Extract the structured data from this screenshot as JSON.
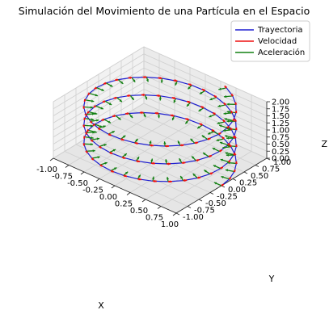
{
  "chart_data": {
    "type": "3d-line",
    "title": "Simulación del Movimiento de una Partícula en el Espacio",
    "xlabel": "X",
    "ylabel": "Y",
    "zlabel": "Z",
    "xlim": [
      -1.0,
      1.0
    ],
    "ylim": [
      -1.0,
      1.0
    ],
    "zlim": [
      0.0,
      2.0
    ],
    "x_ticks": [
      "-1.00",
      "-0.75",
      "-0.50",
      "-0.25",
      "0.00",
      "0.25",
      "0.50",
      "0.75",
      "1.00"
    ],
    "y_ticks": [
      "-1.00",
      "-0.75",
      "-0.50",
      "-0.25",
      "0.00",
      "0.25",
      "0.50",
      "0.75",
      "1.00"
    ],
    "z_ticks": [
      "0.00",
      "0.25",
      "0.50",
      "0.75",
      "1.00",
      "1.25",
      "1.50",
      "1.75",
      "2.00"
    ],
    "grid": true,
    "legend_position": "top-right",
    "trajectory": {
      "x": "cos(t)",
      "y": "sin(t)",
      "z": "0.1·t",
      "t_range": [
        0,
        20
      ],
      "samples": 100
    },
    "series": [
      {
        "name": "Trayectoria",
        "color": "#1f1fd0",
        "kind": "line"
      },
      {
        "name": "Velocidad",
        "color": "#ee1111",
        "kind": "quiver",
        "vector": "(-sin t, cos t, 0.1)"
      },
      {
        "name": "Aceleración",
        "color": "#128012",
        "kind": "quiver",
        "vector": "(-cos t, -sin t, 0)"
      }
    ]
  }
}
